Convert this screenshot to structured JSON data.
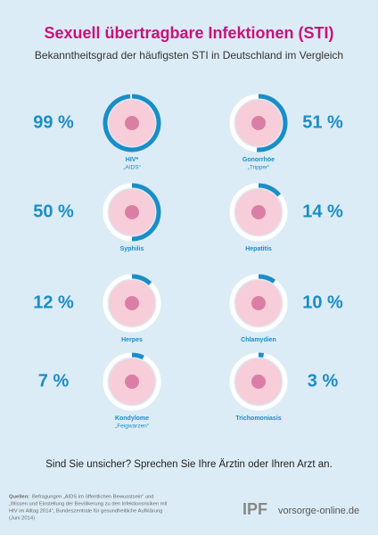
{
  "chart_data": {
    "type": "ring",
    "title": "Sexuell übertragbare Infektionen (STI)",
    "subtitle": "Bekanntheitsgrad der häufigsten STI in Deutschland im Vergleich",
    "categories": [
      "HIV*",
      "Gonorrhöe",
      "Syphilis",
      "Hepatitis",
      "Herpes",
      "Chlamydien",
      "Kondylome",
      "Trichomoniasis"
    ],
    "sublabels": [
      "„AIDS“",
      "„Tripper“",
      null,
      null,
      null,
      null,
      "„Feigwarzen“",
      null
    ],
    "values": [
      99,
      51,
      50,
      14,
      12,
      10,
      7,
      3
    ],
    "value_labels": [
      "99 %",
      "51 %",
      "50 %",
      "14 %",
      "12 %",
      "10 %",
      "7 %",
      "3 %"
    ],
    "ylim": [
      0,
      100
    ],
    "color": "#1b8dc7"
  },
  "call_to_action": "Sind Sie unsicher? Sprechen Sie Ihre Ärztin oder Ihren Arzt an.",
  "sources": {
    "label": "Quellen:",
    "lines": [
      "Befragungen „AIDS im öffentlichen Bewusstsein“ und",
      "„Wissen und Einstellung der Bevölkerung zu den Infektionsrisiken mit",
      "HIV im Alltag 2014“, Bundeszentrale für gesundheitliche Aufklärung",
      "(Juni 2014)"
    ]
  },
  "logo": {
    "mark": "IPF",
    "url": "vorsorge-online.de"
  }
}
